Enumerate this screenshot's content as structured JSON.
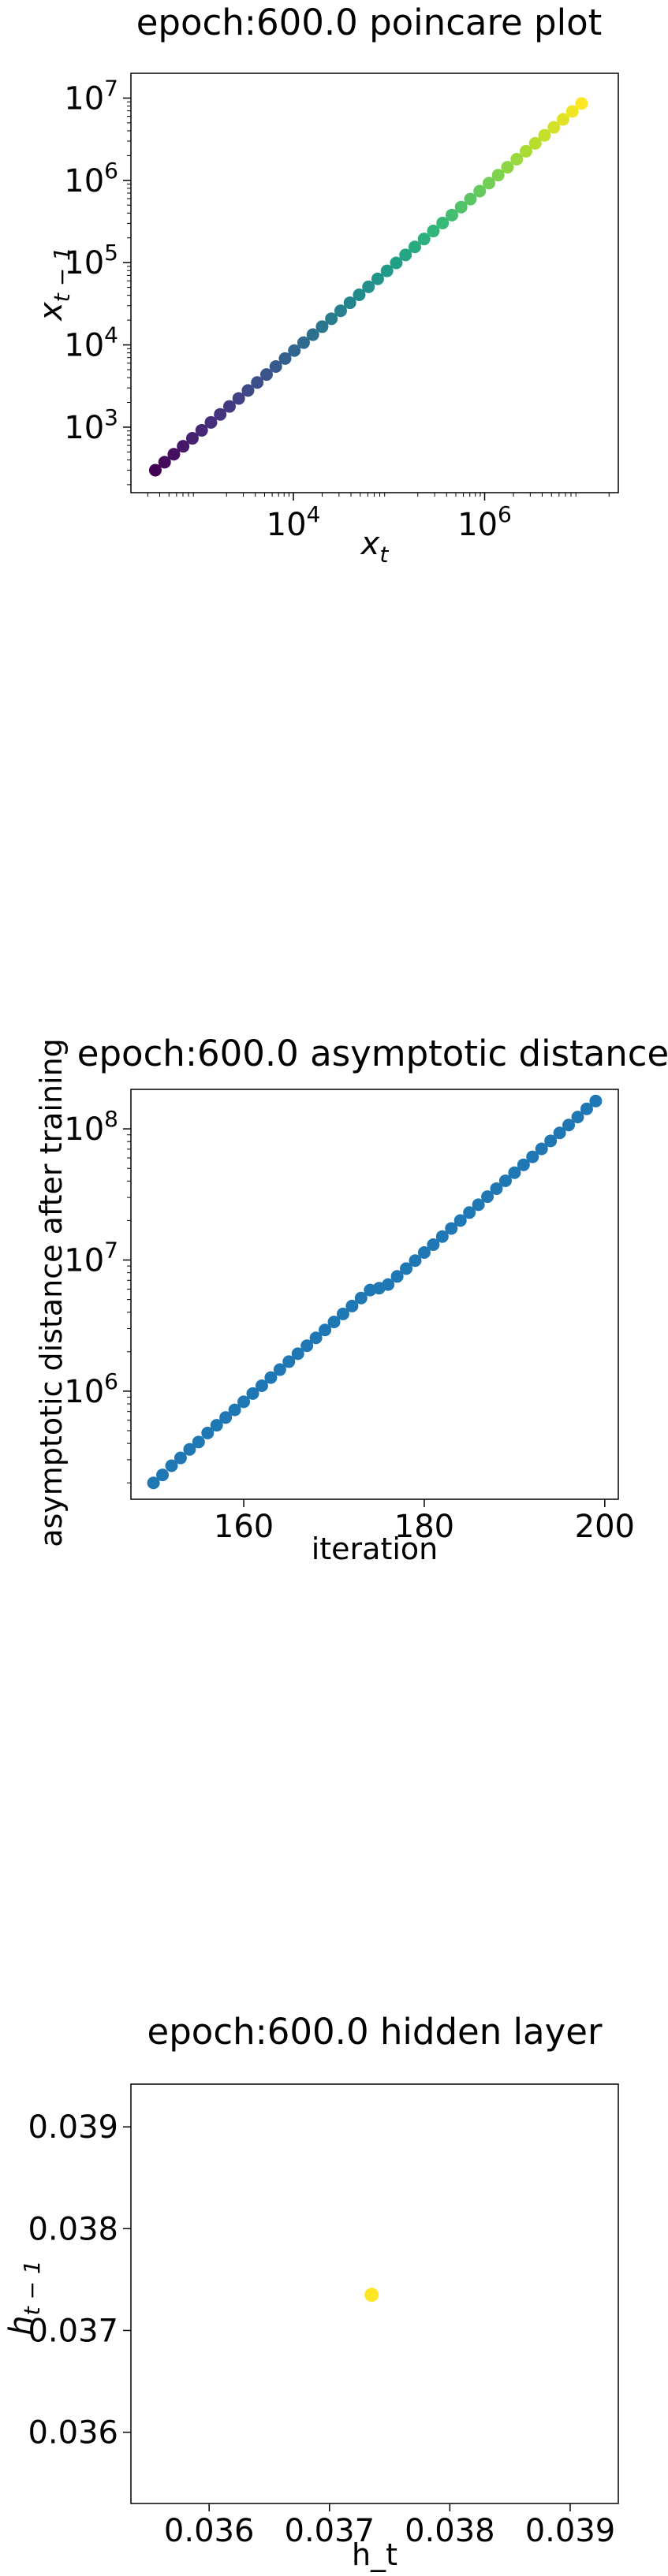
{
  "chart_data": [
    {
      "type": "scatter",
      "title": "epoch:600.0 poincare plot",
      "xlabel": "x_t",
      "ylabel": "x_{t-1}",
      "xscale": "log",
      "yscale": "log",
      "xlim": [
        200,
        25000000
      ],
      "ylim": [
        160,
        20000000
      ],
      "xticks": [
        {
          "value": 10000,
          "exp": "4"
        },
        {
          "value": 1000000,
          "exp": "6"
        }
      ],
      "yticks": [
        {
          "value": 1000,
          "exp": "3"
        },
        {
          "value": 10000,
          "exp": "4"
        },
        {
          "value": 100000,
          "exp": "5"
        },
        {
          "value": 1000000,
          "exp": "6"
        },
        {
          "value": 10000000,
          "exp": "7"
        }
      ],
      "colormap": "viridis",
      "points": {
        "x_start": 360,
        "y_start": 300,
        "ratio": 1.25,
        "count": 47
      },
      "grid": false
    },
    {
      "type": "scatter",
      "title": "epoch:600.0 asymptotic distance",
      "xlabel": "iteration",
      "ylabel": "asymptotic distance after training",
      "yscale": "log",
      "xlim": [
        147.5,
        201.5
      ],
      "ylim": [
        150000,
        200000000
      ],
      "xticks": [
        160,
        180,
        200
      ],
      "yticks": [
        {
          "value": 1000000,
          "exp": "6"
        },
        {
          "value": 10000000,
          "exp": "7"
        },
        {
          "value": 100000000,
          "exp": "8"
        }
      ],
      "color": "#1f77b4",
      "x": [
        150,
        151,
        152,
        153,
        154,
        155,
        156,
        157,
        158,
        159,
        160,
        161,
        162,
        163,
        164,
        165,
        166,
        167,
        168,
        169,
        170,
        171,
        172,
        173,
        174,
        175,
        176,
        177,
        178,
        179,
        180,
        181,
        182,
        183,
        184,
        185,
        186,
        187,
        188,
        189,
        190,
        191,
        192,
        193,
        194,
        195,
        196,
        197,
        198,
        199
      ],
      "y": [
        200000,
        230000,
        270000,
        310000,
        360000,
        410000,
        480000,
        550000,
        630000,
        720000,
        830000,
        960000,
        1100000,
        1270000,
        1460000,
        1680000,
        1930000,
        2220000,
        2550000,
        2930000,
        3370000,
        3880000,
        4460000,
        5130000,
        5900000,
        6100000,
        6500000,
        7500000,
        8600000,
        9900000,
        11400000,
        13100000,
        15100000,
        17400000,
        20000000,
        23000000,
        26400000,
        30400000,
        35000000,
        40200000,
        46300000,
        53200000,
        61200000,
        70400000,
        81000000,
        93100000,
        107000000,
        123000000,
        142000000,
        163000000
      ],
      "grid": false
    },
    {
      "type": "scatter",
      "title": "epoch:600.0 hidden layer",
      "xlabel": "h_t",
      "ylabel": "h_{t-1}",
      "xlim": [
        0.03535,
        0.0394
      ],
      "ylim": [
        0.0353,
        0.03942
      ],
      "xticks": [
        "0.036",
        "0.037",
        "0.038",
        "0.039"
      ],
      "yticks": [
        "0.036",
        "0.037",
        "0.038",
        "0.039"
      ],
      "x": [
        0.03735
      ],
      "y": [
        0.03735
      ],
      "color": "#fde725",
      "grid": false
    }
  ]
}
